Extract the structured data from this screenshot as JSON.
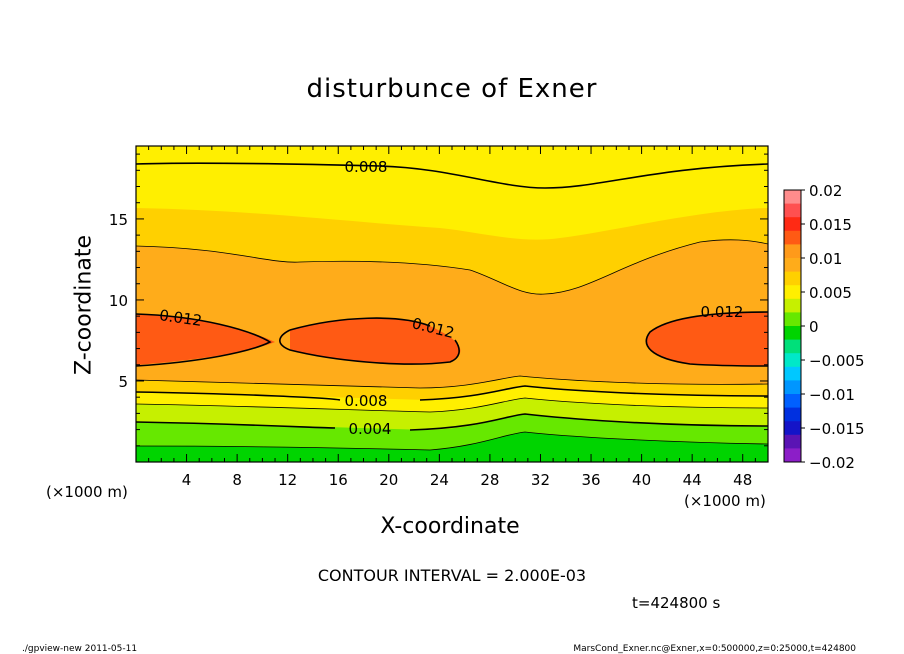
{
  "title": "disturbunce of Exner",
  "chart_data": {
    "type": "heatmap",
    "title": "disturbunce of Exner",
    "xlabel": "X-coordinate",
    "ylabel": "Z-coordinate",
    "x_unit": "(×1000 m)",
    "y_unit": "(×1000 m)",
    "xlim": [
      0,
      50
    ],
    "ylim": [
      0,
      19.5
    ],
    "x_ticks": [
      4,
      8,
      12,
      16,
      20,
      24,
      28,
      32,
      36,
      40,
      44,
      48
    ],
    "y_ticks": [
      5,
      10,
      15
    ],
    "colorbar": {
      "ticks": [
        "0.02",
        "0.015",
        "0.01",
        "0.005",
        "0",
        "−0.005",
        "−0.01",
        "−0.015",
        "−0.02"
      ],
      "range": [
        -0.02,
        0.02
      ]
    },
    "contour_labels": [
      "0.008",
      "0.012",
      "0.012",
      "0.012",
      "0.008",
      "0.004"
    ],
    "contour_interval": 0.002
  },
  "contour_interval_text": "CONTOUR INTERVAL = 2.000E-03",
  "time_text": "t=424800 s",
  "footer": {
    "left": "./gpview-new   2011-05-11",
    "right": "MarsCond_Exner.nc@Exner,x=0:500000,z=0:25000,t=424800"
  },
  "colors": {
    "level_0.002": "#00d400",
    "level_0.004": "#66e800",
    "level_0.006": "#c6f000",
    "level_0.008": "#ffef00",
    "level_0.010": "#ffd000",
    "level_0.012": "#ffac1a",
    "level_0.014": "#ff5a14"
  }
}
